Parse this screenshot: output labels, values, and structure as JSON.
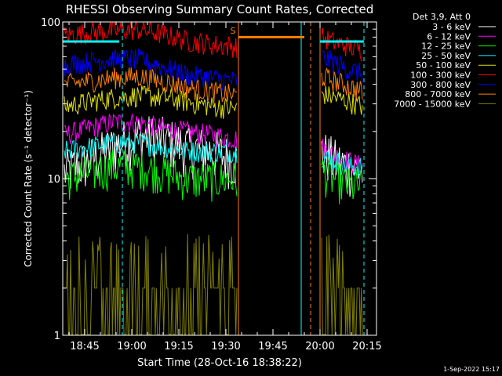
{
  "chart_data": {
    "type": "line",
    "title": "RHESSI Observing Summary Count Rates, Corrected",
    "xlabel": "Start Time (28-Oct-16 18:38:22)",
    "ylabel": "Corrected Count Rate (s⁻¹ detector⁻¹)",
    "y_scale": "log",
    "ylim": [
      1,
      100
    ],
    "xlim": [
      "18:38",
      "20:18"
    ],
    "x_ticks": [
      "18:45",
      "19:00",
      "19:15",
      "19:30",
      "19:45",
      "20:00",
      "20:15"
    ],
    "y_ticks": [
      "1",
      "10",
      "100"
    ],
    "grid": false,
    "legend_title": "Det 3,9, Att 0",
    "legend_position": "top-right",
    "data_gaps": [
      [
        "19:34",
        "20:00"
      ]
    ],
    "flag_marker": {
      "label": "S",
      "time": "19:33",
      "color": "#ff8000"
    },
    "vertical_lines": [
      {
        "time": "18:38",
        "color": "#00ffff",
        "style": "solid"
      },
      {
        "time": "18:57",
        "color": "#00ffff",
        "style": "dashed"
      },
      {
        "time": "19:34",
        "color": "#ff8000",
        "style": "solid"
      },
      {
        "time": "19:54",
        "color": "#00ffff",
        "style": "solid"
      },
      {
        "time": "19:57",
        "color": "#ff8000",
        "style": "dashed"
      },
      {
        "time": "20:00",
        "color": "#ff8000",
        "style": "solid"
      },
      {
        "time": "20:14",
        "color": "#00ffff",
        "style": "dashed"
      }
    ],
    "horizontal_bars": [
      {
        "from": "18:38",
        "to": "18:56",
        "value": 75,
        "color": "#00ffff"
      },
      {
        "from": "19:34",
        "to": "19:55",
        "value": 80,
        "color": "#ff8000"
      },
      {
        "from": "20:00",
        "to": "20:14",
        "value": 75,
        "color": "#00ffff"
      }
    ],
    "series": [
      {
        "name": "3 - 6 keV",
        "color": "#ffffff",
        "level": [
          11,
          13,
          16,
          19,
          18,
          16,
          15,
          13
        ],
        "level_after": [
          15,
          13,
          12,
          11
        ]
      },
      {
        "name": "6 - 12 keV",
        "color": "#ff00ff",
        "level": [
          19,
          21,
          23,
          23,
          21,
          20,
          19,
          18
        ],
        "level_after": [
          16,
          14,
          13,
          12
        ]
      },
      {
        "name": "12 - 25 keV",
        "color": "#00ff00",
        "level": [
          10,
          11,
          12,
          12,
          11,
          10,
          10,
          10
        ],
        "level_after": [
          11,
          10,
          9,
          9
        ]
      },
      {
        "name": "25 - 50 keV",
        "color": "#00ffff",
        "level": [
          15,
          16,
          17,
          17,
          16,
          15,
          15,
          15
        ],
        "level_after": [
          14,
          13,
          12,
          12
        ]
      },
      {
        "name": "50 - 100 keV",
        "color": "#e0e000",
        "level": [
          29,
          31,
          33,
          34,
          33,
          31,
          29,
          28
        ],
        "level_after": [
          35,
          33,
          31,
          29
        ]
      },
      {
        "name": "100 - 300 keV",
        "color": "#ff0000",
        "level": [
          82,
          86,
          88,
          90,
          84,
          76,
          72,
          70
        ],
        "level_after": [
          80,
          74,
          70,
          66
        ]
      },
      {
        "name": "300 - 800 keV",
        "color": "#0000ff",
        "level": [
          53,
          56,
          58,
          58,
          52,
          46,
          44,
          42
        ],
        "level_after": [
          60,
          55,
          50,
          47
        ]
      },
      {
        "name": "800 - 7000 keV",
        "color": "#ff8000",
        "level": [
          40,
          42,
          44,
          45,
          42,
          38,
          36,
          34
        ],
        "level_after": [
          45,
          42,
          39,
          36
        ]
      },
      {
        "name": "7000 - 15000 keV",
        "color": "#808000",
        "level": [
          1.7,
          1.7,
          1.7,
          1.7,
          1.6,
          1.6,
          1.6,
          1.6
        ],
        "level_after": [
          1.7,
          1.6,
          1.6,
          1.6
        ]
      }
    ]
  },
  "footer": {
    "timestamp": "1-Sep-2022 15:17"
  }
}
